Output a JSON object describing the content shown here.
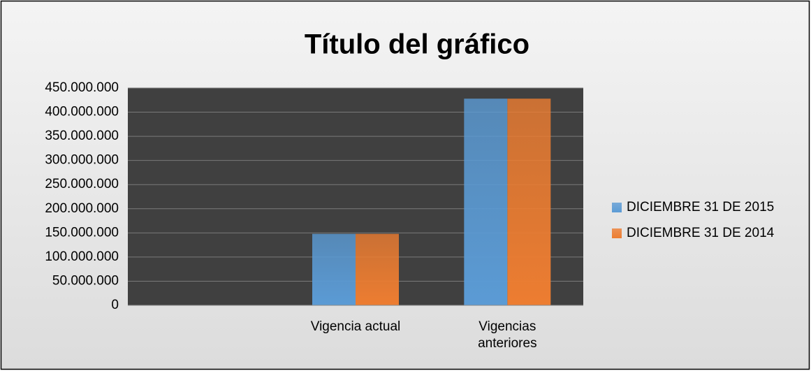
{
  "chart_data": {
    "type": "bar",
    "title": "Título del gráfico",
    "categories": [
      null,
      "Vigencia actual",
      "Vigencias anteriores"
    ],
    "series": [
      {
        "name": "DICIEMBRE 31 DE 2015",
        "color": "#5b9bd5",
        "values": [
          null,
          148000000,
          428000000
        ]
      },
      {
        "name": "DICIEMBRE 31 DE 2014",
        "color": "#ed7d31",
        "values": [
          null,
          148000000,
          428000000
        ]
      }
    ],
    "ylim": [
      0,
      450000000
    ],
    "yticks": [
      0,
      {
        "value": 50000000,
        "label": "50.000.000"
      },
      {
        "value": 100000000,
        "label": "100.000.000"
      },
      {
        "value": 150000000,
        "label": "150.000.000"
      },
      {
        "value": 200000000,
        "label": "200.000.000"
      },
      {
        "value": 250000000,
        "label": "250.000.000"
      },
      {
        "value": 300000000,
        "label": "300.000.000"
      },
      {
        "value": 350000000,
        "label": "350.000.000"
      },
      {
        "value": 400000000,
        "label": "400.000.000"
      },
      {
        "value": 450000000,
        "label": "450.000.000"
      }
    ],
    "grid": true,
    "legend": "right"
  }
}
